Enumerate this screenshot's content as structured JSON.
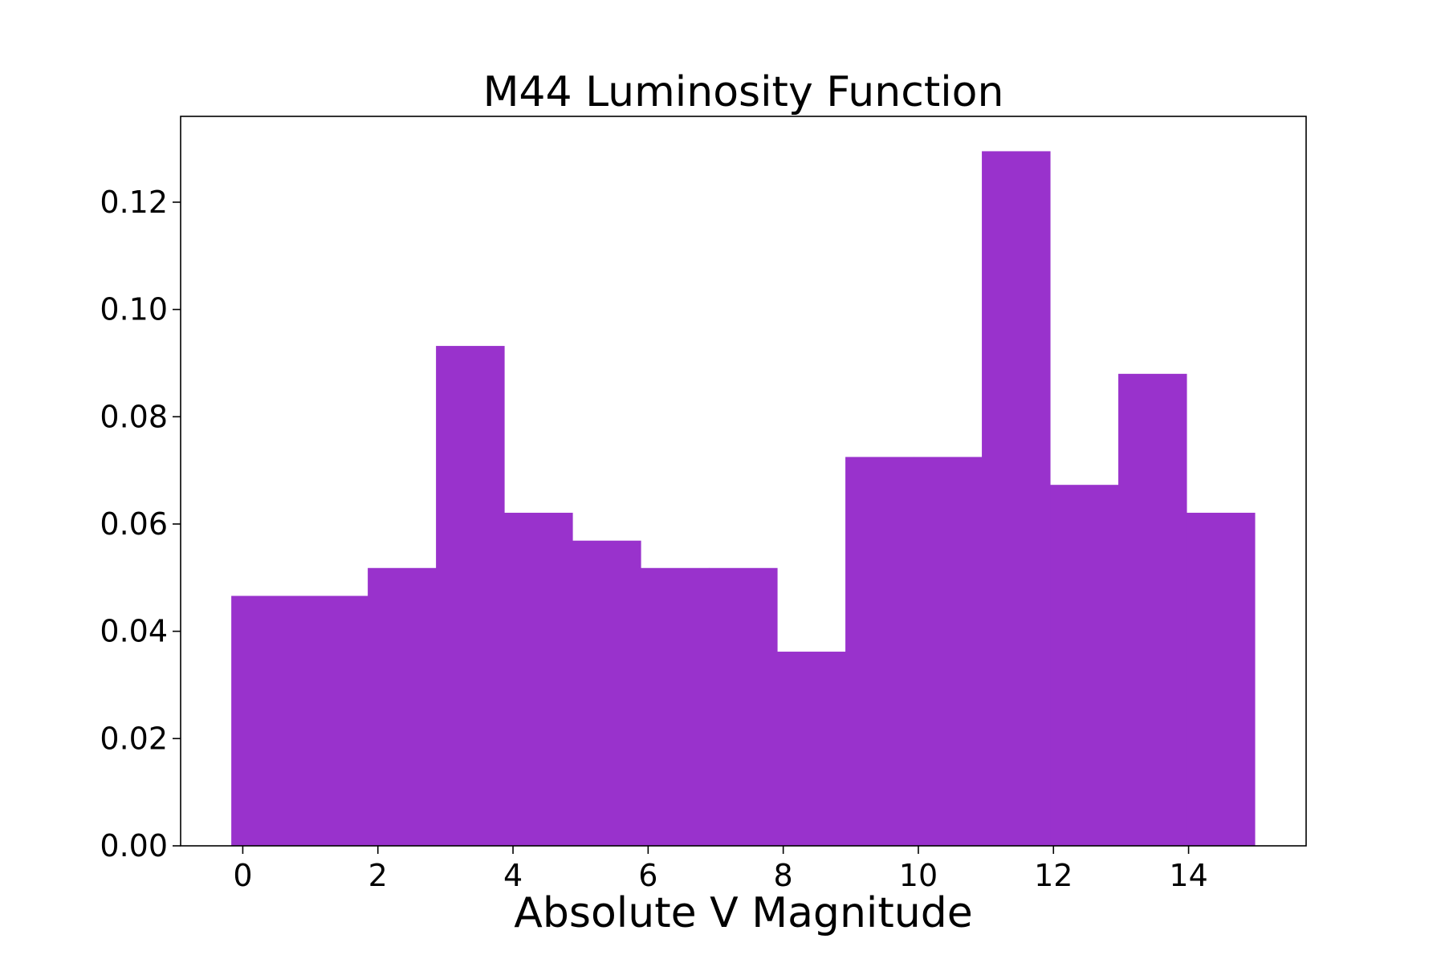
{
  "chart_data": {
    "type": "bar",
    "title": "M44 Luminosity Function",
    "xlabel": "Absolute V Magnitude",
    "ylabel": "",
    "bar_color": "#9932cc",
    "bin_edges": [
      -0.17,
      0.84,
      1.85,
      2.86,
      3.87,
      4.88,
      5.89,
      6.9,
      7.91,
      8.92,
      9.93,
      10.94,
      11.95,
      12.96,
      13.97,
      14.98
    ],
    "values": [
      0.0466,
      0.0466,
      0.0518,
      0.0932,
      0.0621,
      0.0569,
      0.0518,
      0.0518,
      0.0362,
      0.0725,
      0.0725,
      0.1295,
      0.0673,
      0.088,
      0.0621
    ],
    "xlim": [
      -0.92,
      15.74
    ],
    "ylim": [
      0,
      0.136
    ],
    "x_ticks": [
      {
        "value": 0,
        "label": "0"
      },
      {
        "value": 2,
        "label": "2"
      },
      {
        "value": 4,
        "label": "4"
      },
      {
        "value": 6,
        "label": "6"
      },
      {
        "value": 8,
        "label": "8"
      },
      {
        "value": 10,
        "label": "10"
      },
      {
        "value": 12,
        "label": "12"
      },
      {
        "value": 14,
        "label": "14"
      }
    ],
    "y_ticks": [
      {
        "value": 0.0,
        "label": "0.00"
      },
      {
        "value": 0.02,
        "label": "0.02"
      },
      {
        "value": 0.04,
        "label": "0.04"
      },
      {
        "value": 0.06,
        "label": "0.06"
      },
      {
        "value": 0.08,
        "label": "0.08"
      },
      {
        "value": 0.1,
        "label": "0.10"
      },
      {
        "value": 0.12,
        "label": "0.12"
      }
    ],
    "grid": false,
    "legend": "none"
  }
}
